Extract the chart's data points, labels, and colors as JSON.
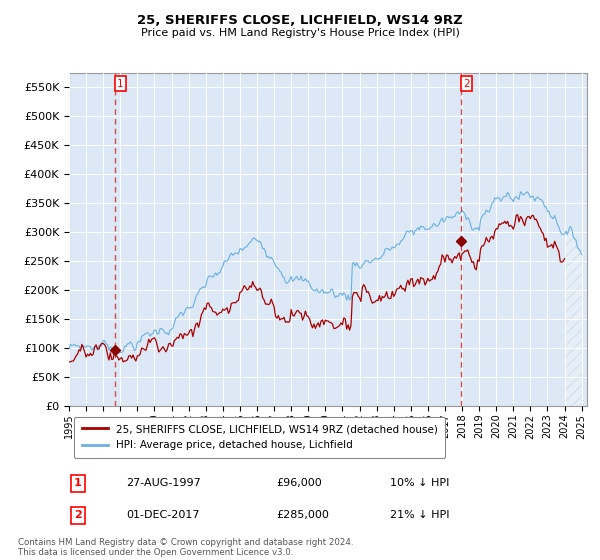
{
  "title": "25, SHERIFFS CLOSE, LICHFIELD, WS14 9RZ",
  "subtitle": "Price paid vs. HM Land Registry's House Price Index (HPI)",
  "ylim": [
    0,
    575000
  ],
  "yticks": [
    0,
    50000,
    100000,
    150000,
    200000,
    250000,
    300000,
    350000,
    400000,
    450000,
    500000,
    550000
  ],
  "ytick_labels": [
    "£0",
    "£50K",
    "£100K",
    "£150K",
    "£200K",
    "£250K",
    "£300K",
    "£350K",
    "£400K",
    "£450K",
    "£500K",
    "£550K"
  ],
  "hpi_color": "#6ab0e0",
  "price_color": "#aa0000",
  "marker_color": "#880000",
  "dashed_line_color": "#cc3333",
  "sale1_year": 1997.67,
  "sale1_price": 96000,
  "sale1_label": "1",
  "sale2_year": 2017.92,
  "sale2_price": 285000,
  "sale2_label": "2",
  "legend_entry1": "25, SHERIFFS CLOSE, LICHFIELD, WS14 9RZ (detached house)",
  "legend_entry2": "HPI: Average price, detached house, Lichfield",
  "note1_label": "1",
  "note1_date": "27-AUG-1997",
  "note1_price": "£96,000",
  "note1_hpi": "10% ↓ HPI",
  "note2_label": "2",
  "note2_date": "01-DEC-2017",
  "note2_price": "£285,000",
  "note2_hpi": "21% ↓ HPI",
  "copyright": "Contains HM Land Registry data © Crown copyright and database right 2024.\nThis data is licensed under the Open Government Licence v3.0.",
  "plot_bg_color": "#dce8f5",
  "grid_color": "#ffffff",
  "hatch_color": "#c8d8e8",
  "xmin": 1995,
  "xmax": 2025.3,
  "hatch_start": 2024.0
}
